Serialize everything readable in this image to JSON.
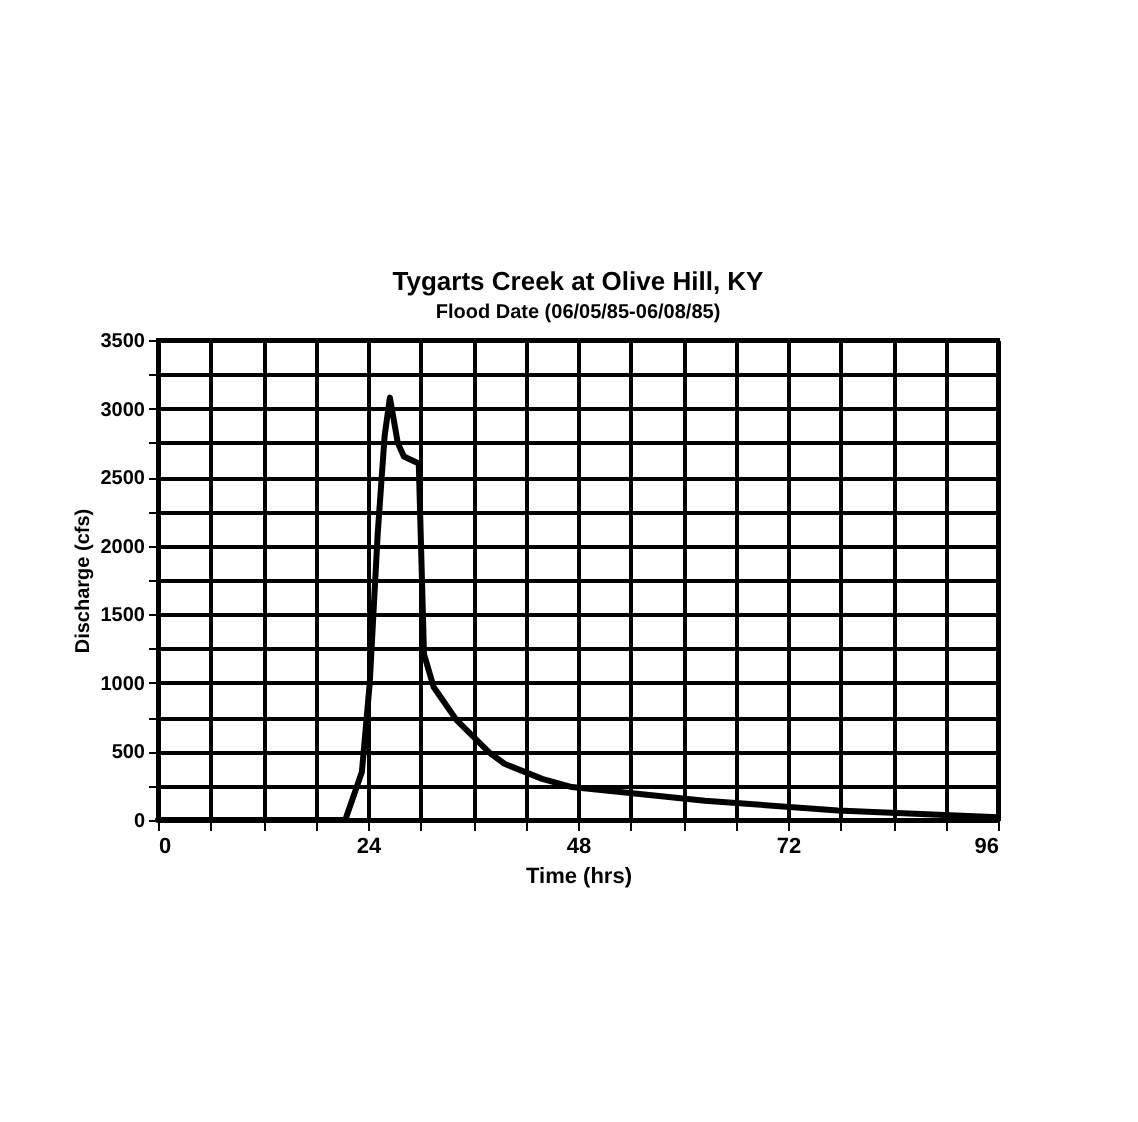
{
  "chart_data": {
    "type": "line",
    "title": "Tygarts Creek at Olive Hill, KY",
    "subtitle": "Flood Date (06/05/85-06/08/85)",
    "xlabel": "Time (hrs)",
    "ylabel": "Discharge (cfs)",
    "x": [
      0,
      21.4,
      23.3,
      24.2,
      25.1,
      25.9,
      26.5,
      27.4,
      28.1,
      29.8,
      30.4,
      31.5,
      34.1,
      37.9,
      39.6,
      43.9,
      47.3,
      62.5,
      77.7,
      96
    ],
    "series": [
      {
        "color": "#000000",
        "values": [
          0,
          0,
          350,
          1000,
          2080,
          2800,
          3080,
          2750,
          2650,
          2600,
          1210,
          970,
          730,
          490,
          410,
          300,
          240,
          140,
          70,
          20
        ]
      }
    ],
    "xlim": [
      0,
      96
    ],
    "ylim": [
      0,
      3500
    ],
    "xticks": [
      0,
      {
        "value": 6,
        "label": null
      },
      {
        "value": 12,
        "label": null
      },
      {
        "value": 18,
        "label": null
      },
      24,
      {
        "value": 30,
        "label": null
      },
      {
        "value": 36,
        "label": null
      },
      {
        "value": 42,
        "label": null
      },
      48,
      {
        "value": 54,
        "label": null
      },
      {
        "value": 60,
        "label": null
      },
      {
        "value": 66,
        "label": null
      },
      72,
      {
        "value": 78,
        "label": null
      },
      {
        "value": 84,
        "label": null
      },
      {
        "value": 90,
        "label": null
      },
      96
    ],
    "yticks": [
      0,
      {
        "value": 250,
        "label": null
      },
      500,
      {
        "value": 750,
        "label": null
      },
      1000,
      {
        "value": 1250,
        "label": null
      },
      1500,
      {
        "value": 1750,
        "label": null
      },
      2000,
      {
        "value": 2250,
        "label": null
      },
      2500,
      {
        "value": 2750,
        "label": null
      },
      3000,
      {
        "value": 3250,
        "label": null
      },
      3500
    ],
    "grid": true,
    "marker": "none",
    "line_style": "solid"
  }
}
